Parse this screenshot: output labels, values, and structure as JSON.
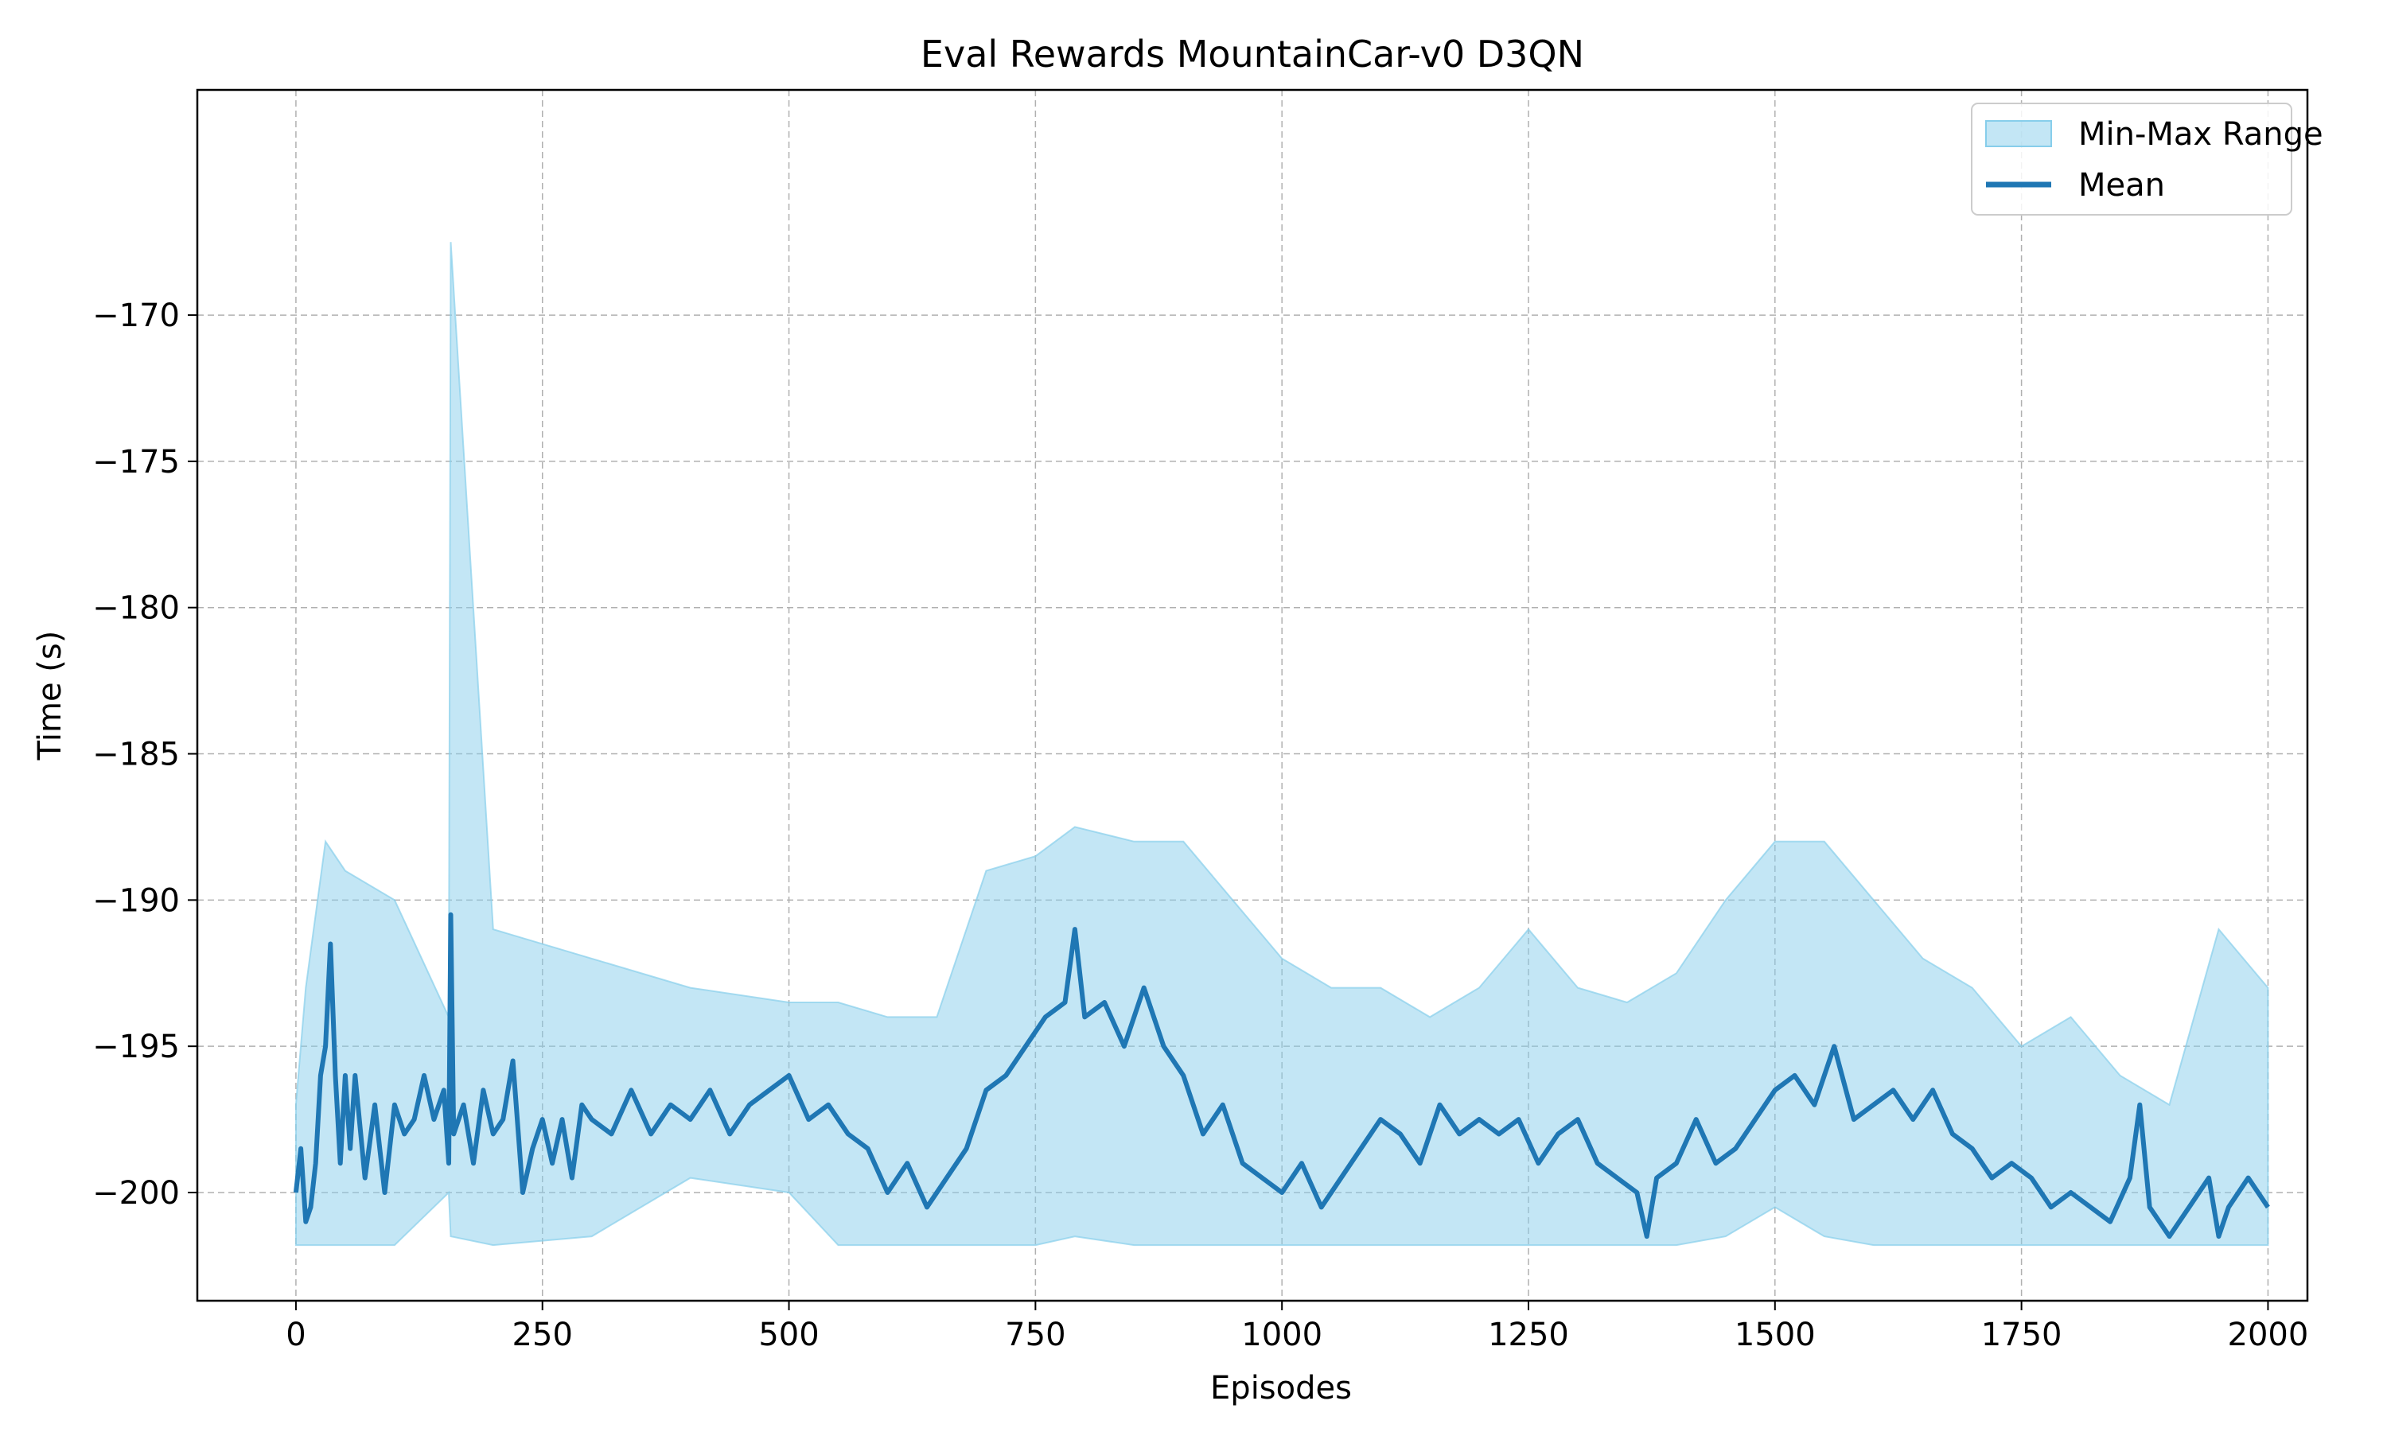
{
  "chart_data": {
    "type": "area",
    "title": "Eval Rewards MountainCar-v0 D3QN",
    "xlabel": "Episodes",
    "ylabel": "Time (s)",
    "xlim": [
      -100,
      2040
    ],
    "ylim": [
      -203.7,
      -162.3
    ],
    "xticks": [
      0,
      250,
      500,
      750,
      1000,
      1250,
      1500,
      1750,
      2000
    ],
    "yticks": [
      -200,
      -195,
      -190,
      -185,
      -180,
      -175,
      -170
    ],
    "ytick_labels": [
      "−200",
      "−195",
      "−190",
      "−185",
      "−180",
      "−175",
      "−170"
    ],
    "grid": true,
    "legend_position": "top-right",
    "series": [
      {
        "name": "Min-Max Range",
        "kind": "band",
        "color": "#87CEEB",
        "x": [
          0,
          10,
          30,
          50,
          100,
          155,
          157,
          200,
          300,
          400,
          500,
          550,
          600,
          650,
          700,
          750,
          790,
          850,
          900,
          950,
          1000,
          1050,
          1100,
          1150,
          1200,
          1250,
          1300,
          1350,
          1400,
          1450,
          1500,
          1550,
          1600,
          1650,
          1700,
          1750,
          1800,
          1850,
          1900,
          1950,
          2000
        ],
        "upper": [
          -197,
          -193,
          -188,
          -189,
          -190,
          -194,
          -167.5,
          -191,
          -192,
          -193,
          -193.5,
          -193.5,
          -194,
          -194,
          -189,
          -188.5,
          -187.5,
          -188,
          -188,
          -190,
          -192,
          -193,
          -193,
          -194,
          -193,
          -191,
          -193,
          -193.5,
          -192.5,
          -190,
          -188,
          -188,
          -190,
          -192,
          -193,
          -195,
          -194,
          -196,
          -197,
          -191,
          -193
        ],
        "lower": [
          -201.8,
          -201.8,
          -201.8,
          -201.8,
          -201.8,
          -200,
          -201.5,
          -201.8,
          -201.5,
          -199.5,
          -200,
          -201.8,
          -201.8,
          -201.8,
          -201.8,
          -201.8,
          -201.5,
          -201.8,
          -201.8,
          -201.8,
          -201.8,
          -201.8,
          -201.8,
          -201.8,
          -201.8,
          -201.8,
          -201.8,
          -201.8,
          -201.8,
          -201.5,
          -200.5,
          -201.5,
          -201.8,
          -201.8,
          -201.8,
          -201.8,
          -201.8,
          -201.8,
          -201.8,
          -201.8,
          -201.8
        ]
      },
      {
        "name": "Mean",
        "kind": "line",
        "color": "#1f77b4",
        "x": [
          0,
          5,
          10,
          15,
          20,
          25,
          30,
          35,
          40,
          45,
          50,
          55,
          60,
          70,
          80,
          90,
          100,
          110,
          120,
          130,
          140,
          150,
          155,
          157,
          160,
          170,
          180,
          190,
          200,
          210,
          220,
          230,
          240,
          250,
          260,
          270,
          280,
          290,
          300,
          320,
          340,
          360,
          380,
          400,
          420,
          440,
          460,
          480,
          500,
          520,
          540,
          560,
          580,
          600,
          620,
          640,
          660,
          680,
          700,
          720,
          740,
          760,
          780,
          790,
          800,
          820,
          840,
          860,
          880,
          900,
          920,
          940,
          960,
          980,
          1000,
          1020,
          1040,
          1060,
          1080,
          1100,
          1120,
          1140,
          1160,
          1180,
          1200,
          1220,
          1240,
          1260,
          1280,
          1300,
          1320,
          1340,
          1360,
          1370,
          1380,
          1400,
          1420,
          1440,
          1460,
          1480,
          1500,
          1520,
          1540,
          1560,
          1580,
          1600,
          1620,
          1640,
          1660,
          1680,
          1700,
          1720,
          1740,
          1760,
          1780,
          1800,
          1820,
          1840,
          1860,
          1870,
          1880,
          1900,
          1920,
          1940,
          1950,
          1960,
          1980,
          2000
        ],
        "values": [
          -200,
          -198.5,
          -201,
          -200.5,
          -199,
          -196,
          -195,
          -191.5,
          -196,
          -199,
          -196,
          -198.5,
          -196,
          -199.5,
          -197,
          -200,
          -197,
          -198,
          -197.5,
          -196,
          -197.5,
          -196.5,
          -199,
          -190.5,
          -198,
          -197,
          -199,
          -196.5,
          -198,
          -197.5,
          -195.5,
          -200,
          -198.5,
          -197.5,
          -199,
          -197.5,
          -199.5,
          -197,
          -197.5,
          -198,
          -196.5,
          -198,
          -197,
          -197.5,
          -196.5,
          -198,
          -197,
          -196.5,
          -196,
          -197.5,
          -197,
          -198,
          -198.5,
          -200,
          -199,
          -200.5,
          -199.5,
          -198.5,
          -196.5,
          -196,
          -195,
          -194,
          -193.5,
          -191,
          -194,
          -193.5,
          -195,
          -193,
          -195,
          -196,
          -198,
          -197,
          -199,
          -199.5,
          -200,
          -199,
          -200.5,
          -199.5,
          -198.5,
          -197.5,
          -198,
          -199,
          -197,
          -198,
          -197.5,
          -198,
          -197.5,
          -199,
          -198,
          -197.5,
          -199,
          -199.5,
          -200,
          -201.5,
          -199.5,
          -199,
          -197.5,
          -199,
          -198.5,
          -197.5,
          -196.5,
          -196,
          -197,
          -195,
          -197.5,
          -197,
          -196.5,
          -197.5,
          -196.5,
          -198,
          -198.5,
          -199.5,
          -199,
          -199.5,
          -200.5,
          -200,
          -200.5,
          -201,
          -199.5,
          -197,
          -200.5,
          -201.5,
          -200.5,
          -199.5,
          -201.5,
          -200.5,
          -199.5,
          -200.5
        ]
      }
    ]
  }
}
